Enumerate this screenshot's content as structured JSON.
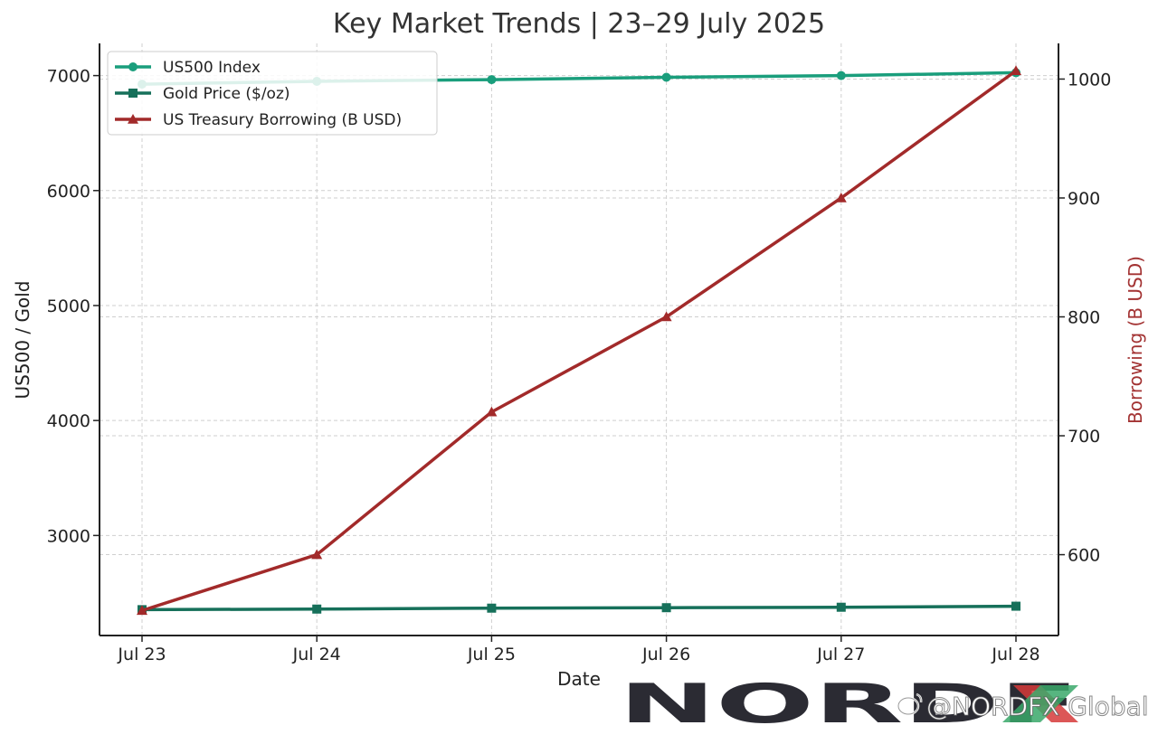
{
  "chart_data": {
    "type": "line",
    "title": "Key Market Trends | 23–29 July 2025",
    "xlabel": "Date",
    "ylabel_left": "US500 / Gold",
    "ylabel_right": "Borrowing (B USD)",
    "categories": [
      "Jul 23",
      "Jul 24",
      "Jul 25",
      "Jul 26",
      "Jul 27",
      "Jul 28"
    ],
    "left_yticks": [
      3000,
      4000,
      5000,
      6000,
      7000
    ],
    "right_yticks": [
      600,
      700,
      800,
      900,
      1000
    ],
    "left_ylim": [
      2130,
      7280
    ],
    "right_ylim": [
      532,
      1030
    ],
    "grid": true,
    "legend_position": "top-left",
    "series": [
      {
        "name": "US500 Index",
        "axis": "left",
        "marker": "circle",
        "color": "#1a9e7c",
        "values": [
          6925,
          6950,
          6965,
          6985,
          7000,
          7025
        ]
      },
      {
        "name": "Gold Price ($/oz)",
        "axis": "left",
        "marker": "square",
        "color": "#16705a",
        "values": [
          2355,
          2360,
          2368,
          2372,
          2376,
          2385
        ]
      },
      {
        "name": "US Treasury Borrowing (B USD)",
        "axis": "right",
        "marker": "triangle",
        "color": "#a22a2a",
        "values": [
          553,
          600,
          720,
          800,
          900,
          1007
        ]
      }
    ]
  },
  "watermark": {
    "logo_text": "NORDFX",
    "handle": "@NORDFX Global"
  },
  "colors": {
    "right_axis_label": "#a33333",
    "logo_dark": "#2b2b33",
    "logo_red": "#d63a3a",
    "logo_green": "#3aa86a"
  }
}
